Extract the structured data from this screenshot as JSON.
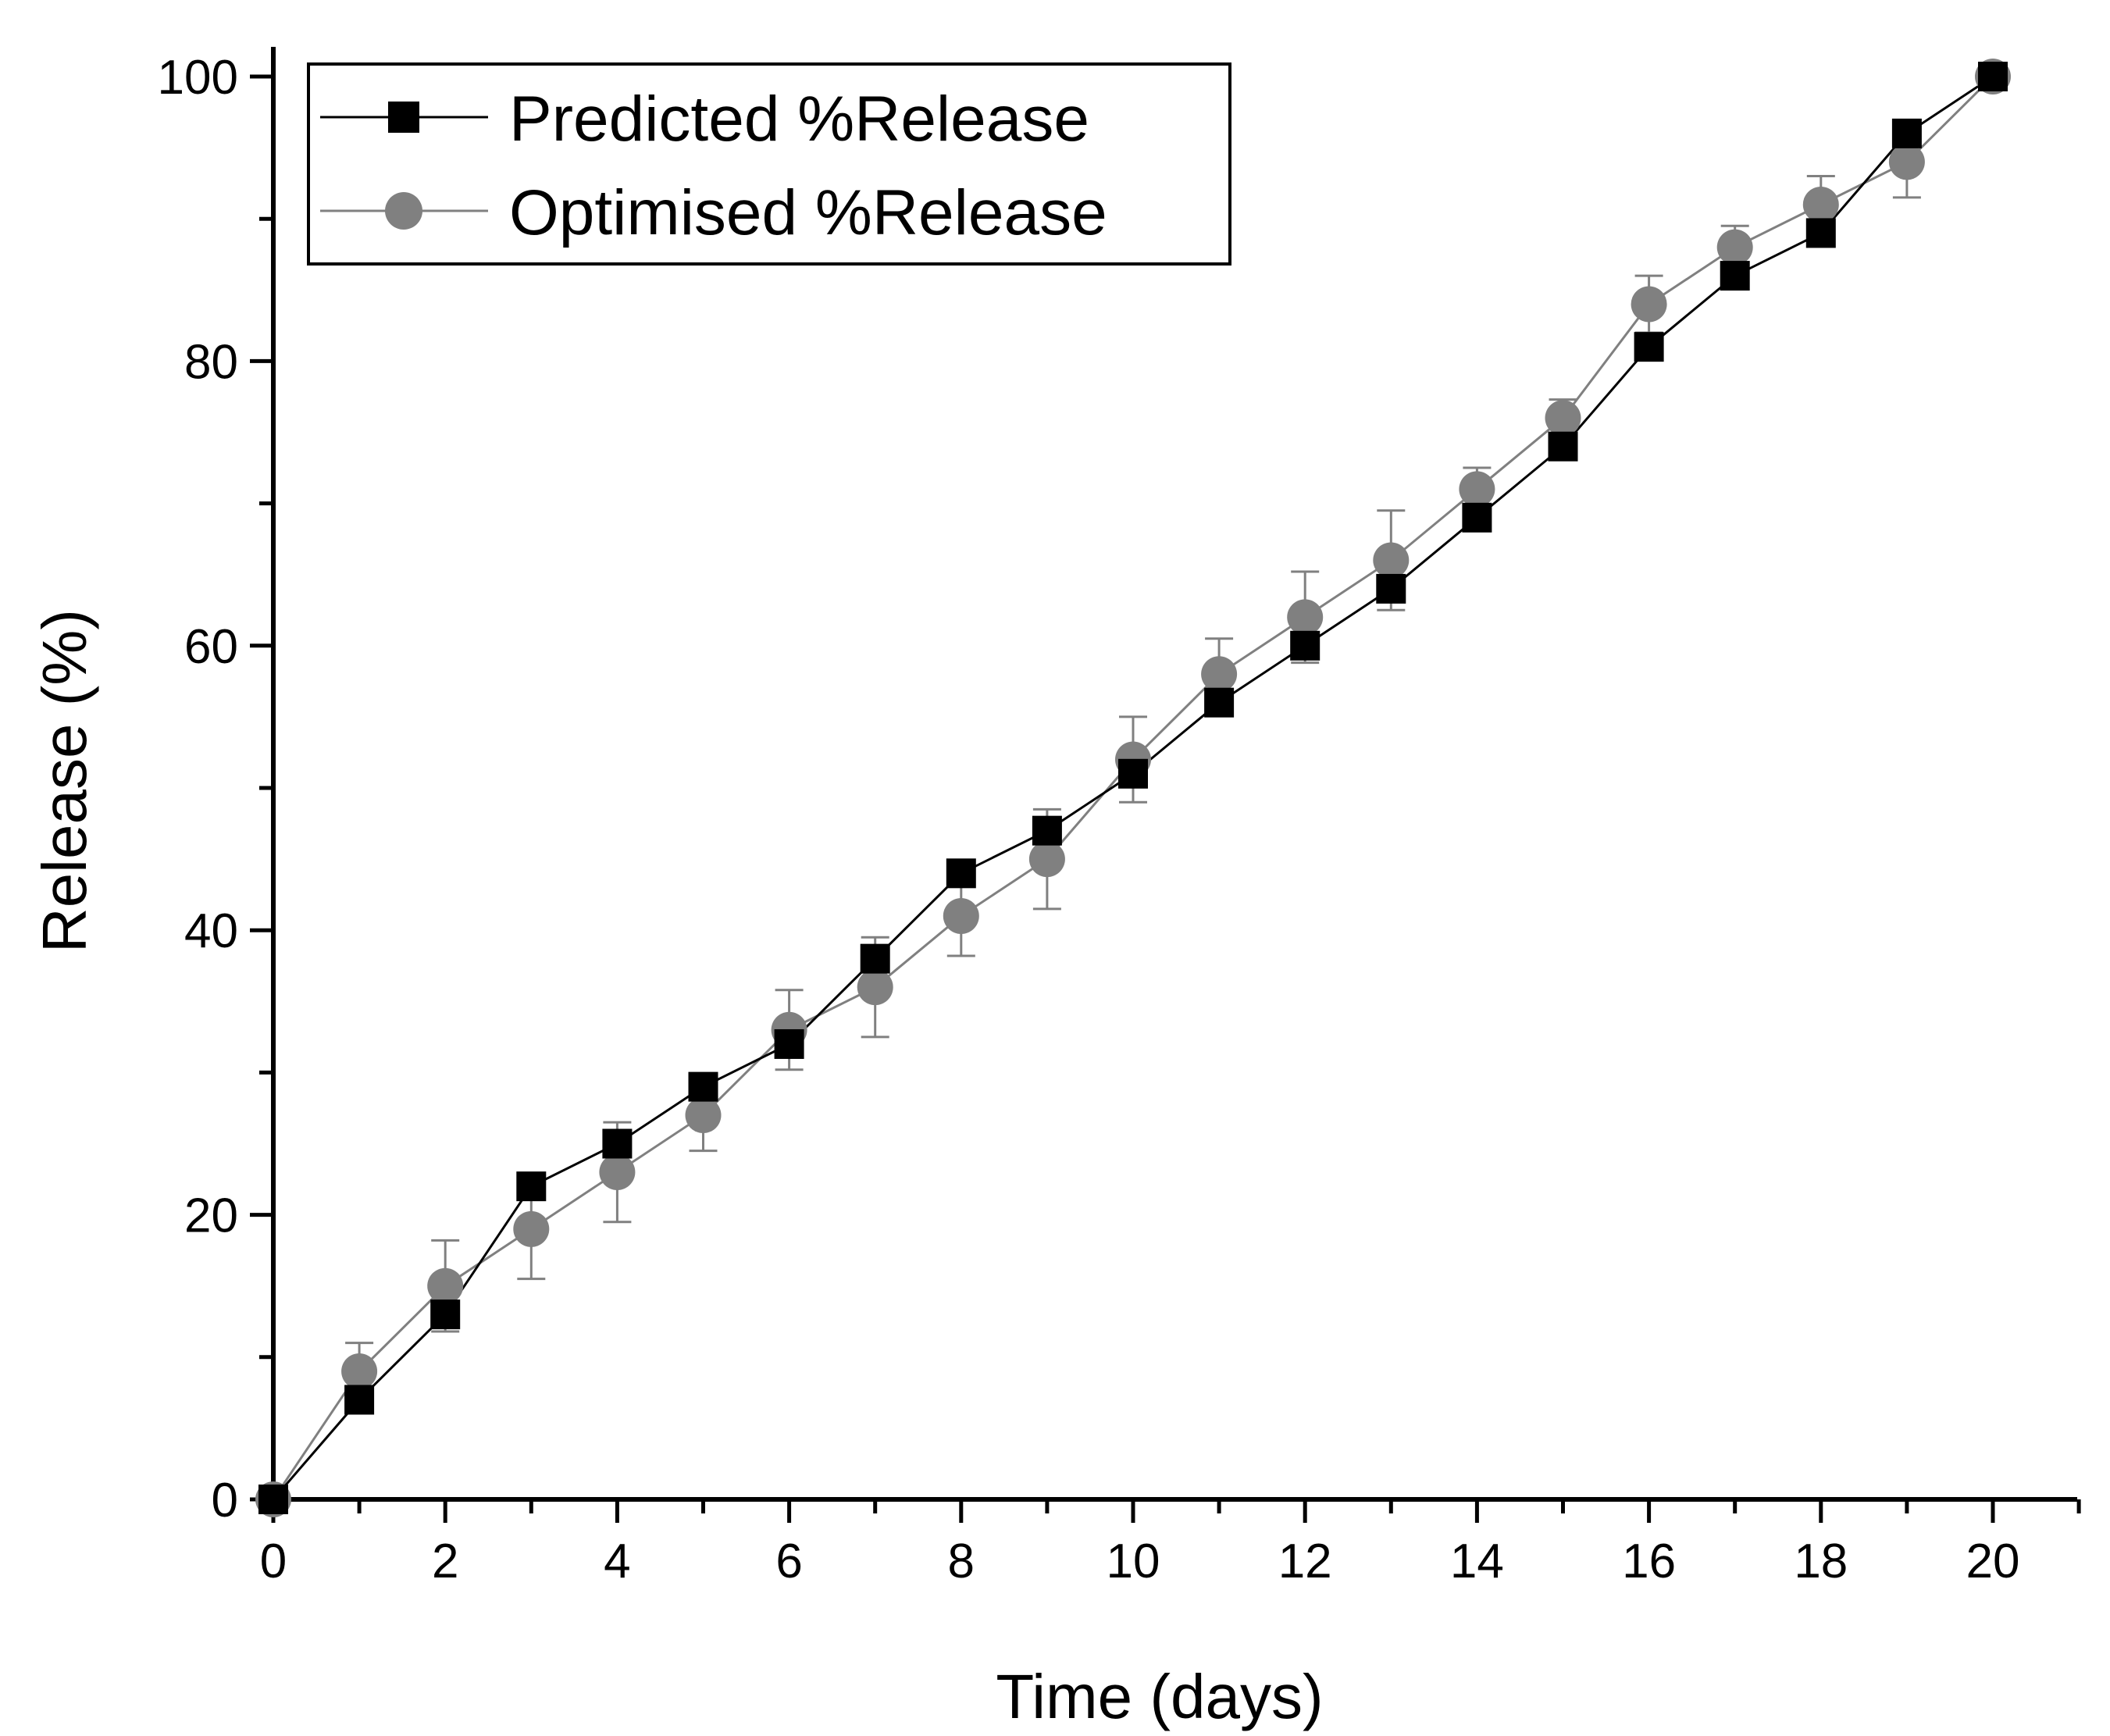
{
  "chart_data": {
    "type": "line",
    "title": "",
    "xlabel": "Time (days)",
    "ylabel": "Release (%)",
    "xlim": [
      0,
      21
    ],
    "ylim": [
      0,
      100
    ],
    "xticks": [
      0,
      2,
      4,
      6,
      8,
      10,
      12,
      14,
      16,
      18,
      20
    ],
    "yticks": [
      0,
      20,
      40,
      60,
      80,
      100
    ],
    "x_minor_step": 1,
    "y_minor_step": 10,
    "grid": false,
    "legend_position": "top-left",
    "x": [
      0,
      1,
      2,
      3,
      4,
      5,
      6,
      7,
      8,
      9,
      10,
      11,
      12,
      13,
      14,
      15,
      16,
      17,
      18,
      19,
      20
    ],
    "series": [
      {
        "name": "Predicted %Release",
        "marker": "square",
        "color": "#000000",
        "values": [
          0,
          7,
          13,
          22,
          25,
          29,
          32,
          38,
          44,
          47,
          51,
          56,
          60,
          64,
          69,
          74,
          81,
          86,
          89,
          96,
          100
        ]
      },
      {
        "name": "Optimised %Release",
        "marker": "circle",
        "color": "#808080",
        "values": [
          0,
          9,
          15,
          19,
          23,
          27,
          33,
          36,
          41,
          45,
          52,
          58,
          62,
          66,
          71,
          76,
          84,
          88,
          91,
          94,
          100
        ],
        "errors": [
          0,
          2,
          3.2,
          3.5,
          3.5,
          2.5,
          2.8,
          3.5,
          2.8,
          3.5,
          3,
          2.5,
          3.2,
          3.5,
          1.5,
          1.3,
          2,
          1.5,
          2,
          2.5,
          0
        ]
      }
    ]
  }
}
